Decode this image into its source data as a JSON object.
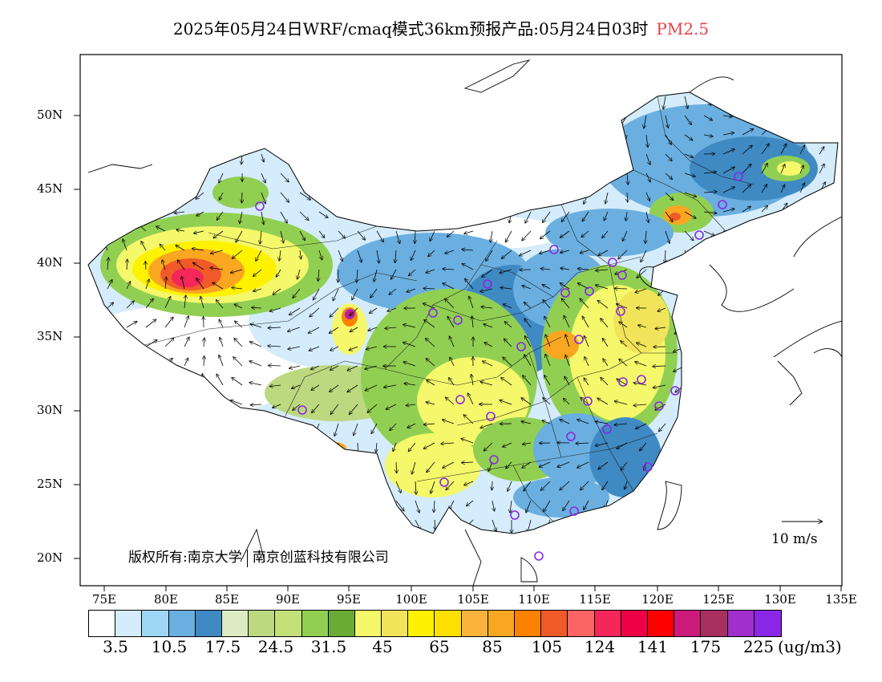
{
  "title": {
    "main": "2025年05月24日WRF/cmaq模式36km预报产品:05月24日03时",
    "pollutant": "PM2.5",
    "pollutant_color": "#e8404a"
  },
  "latitude_labels": [
    "50N",
    "45N",
    "40N",
    "35N",
    "30N",
    "25N",
    "20N"
  ],
  "longitude_labels": [
    "75E",
    "80E",
    "85E",
    "90E",
    "95E",
    "100E",
    "105E",
    "110E",
    "115E",
    "120E",
    "125E",
    "130E",
    "135E"
  ],
  "colorbar": {
    "colors": [
      "#ffffff",
      "#d4ecfb",
      "#9ed6f6",
      "#6aafe0",
      "#3f8ac3",
      "#dcebc2",
      "#bcd97f",
      "#c3e079",
      "#91cf52",
      "#6aab35",
      "#f4f86a",
      "#f2e45a",
      "#fef200",
      "#fde000",
      "#f9b23c",
      "#f9a621",
      "#fb8100",
      "#f05a28",
      "#fd6565",
      "#f4265a",
      "#ee0045",
      "#ff0000",
      "#cc1a7a",
      "#a73060",
      "#a02fcc",
      "#8a27e6"
    ],
    "labels": [
      "3.5",
      "10.5",
      "17.5",
      "24.5",
      "31.5",
      "45",
      "65",
      "85",
      "105",
      "124",
      "141",
      "175",
      "225"
    ],
    "unit": "(ug/m3)"
  },
  "credit": {
    "part1": "版权所有:南京大学",
    "part2": "南京创蓝科技有限公司"
  },
  "wind_scale": {
    "label": "10  m/s"
  },
  "legend_icons": [
    "station-circle-icon",
    "wind-arrow-icon"
  ]
}
